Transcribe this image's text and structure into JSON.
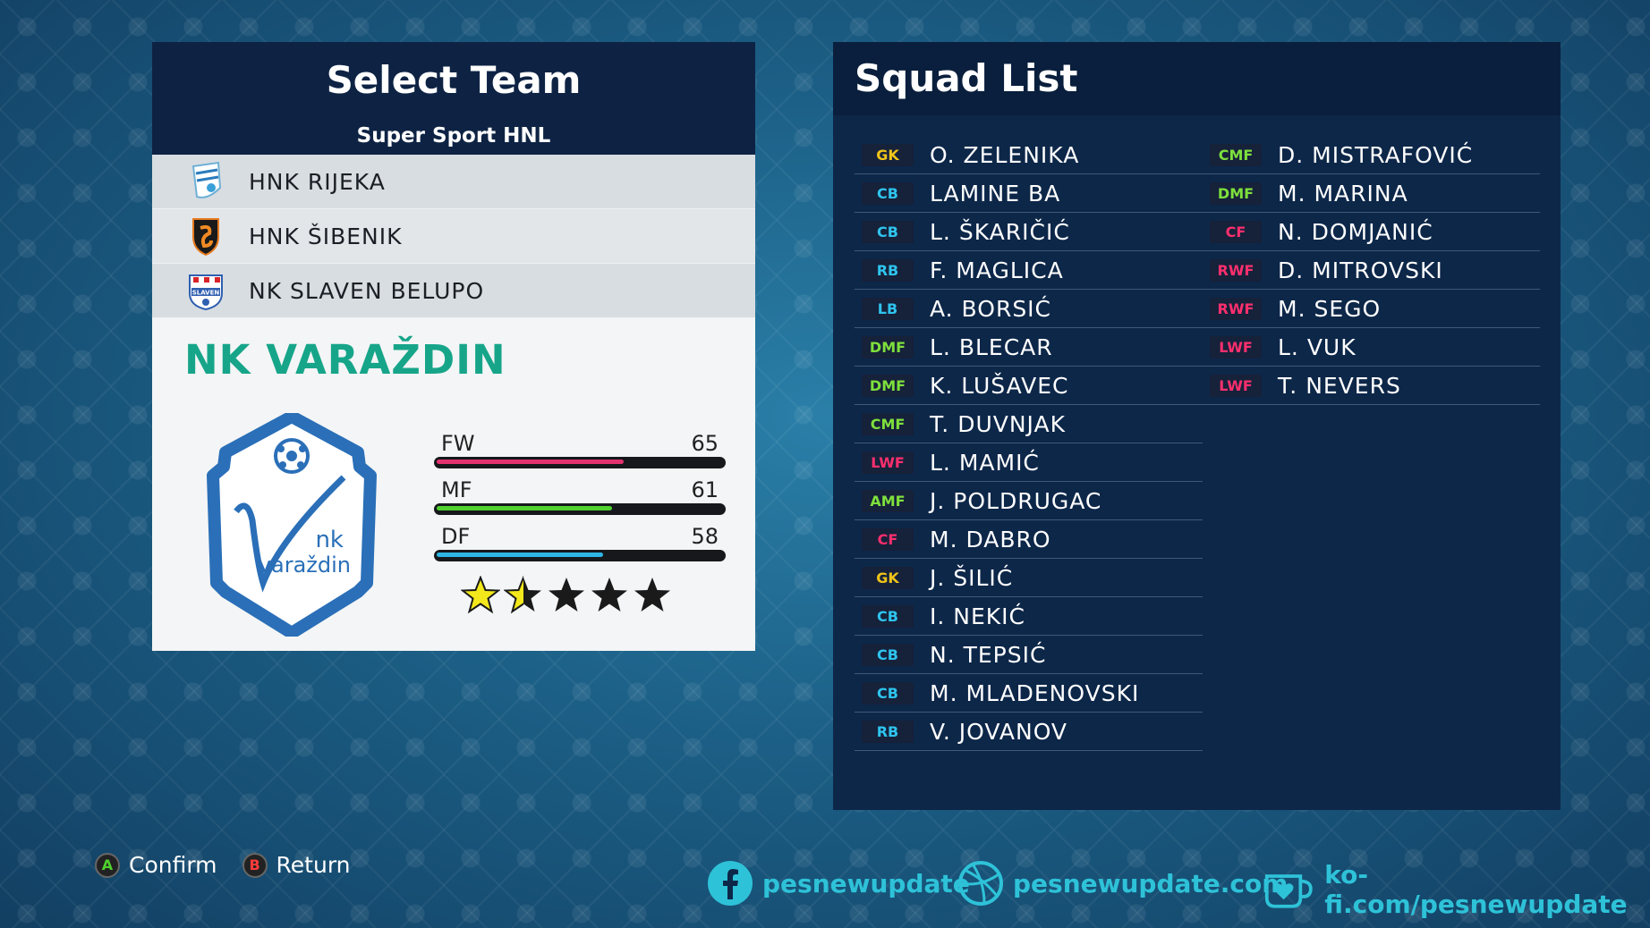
{
  "select_team": {
    "title": "Select Team",
    "league": "Super Sport HNL",
    "teams": [
      {
        "name": "HNK RIJEKA"
      },
      {
        "name": "HNK ŠIBENIK"
      },
      {
        "name": "NK SLAVEN BELUPO"
      }
    ],
    "crest_text": {
      "slaven": "SLAVEN"
    },
    "selected": {
      "name": "NK VARAŽDIN",
      "crest_text": {
        "line1": "nk",
        "line2": "varaždin"
      },
      "stats": [
        {
          "label": "FW",
          "value": "65",
          "color": "#e3336f"
        },
        {
          "label": "MF",
          "value": "61",
          "color": "#4fd12e"
        },
        {
          "label": "DF",
          "value": "58",
          "color": "#2eb6e6"
        }
      ],
      "rating_stars": 1.5,
      "stars_total": 5
    }
  },
  "squad": {
    "title": "Squad List",
    "left": [
      {
        "pos": "GK",
        "name": "O. ZELENIKA",
        "color": "#f0c419"
      },
      {
        "pos": "CB",
        "name": "LAMINE BA",
        "color": "#2ec4ee"
      },
      {
        "pos": "CB",
        "name": "L. ŠKARIČIĆ",
        "color": "#2ec4ee"
      },
      {
        "pos": "RB",
        "name": "F. MAGLICA",
        "color": "#2ec4ee"
      },
      {
        "pos": "LB",
        "name": "A. BORSIĆ",
        "color": "#2ec4ee"
      },
      {
        "pos": "DMF",
        "name": "L. BLECAR",
        "color": "#7ee03c"
      },
      {
        "pos": "DMF",
        "name": "K. LUŠAVEC",
        "color": "#7ee03c"
      },
      {
        "pos": "CMF",
        "name": "T. DUVNJAK",
        "color": "#7ee03c"
      },
      {
        "pos": "LWF",
        "name": "L. MAMIĆ",
        "color": "#ff2f6e"
      },
      {
        "pos": "AMF",
        "name": "J. POLDRUGAC",
        "color": "#7ee03c"
      },
      {
        "pos": "CF",
        "name": "M. DABRO",
        "color": "#ff2f6e"
      },
      {
        "pos": "GK",
        "name": "J. ŠILIĆ",
        "color": "#f0c419"
      },
      {
        "pos": "CB",
        "name": "I. NEKIĆ",
        "color": "#2ec4ee"
      },
      {
        "pos": "CB",
        "name": "N. TEPSIĆ",
        "color": "#2ec4ee"
      },
      {
        "pos": "CB",
        "name": "M. MLADENOVSKI",
        "color": "#2ec4ee"
      },
      {
        "pos": "RB",
        "name": "V. JOVANOV",
        "color": "#2ec4ee"
      }
    ],
    "right": [
      {
        "pos": "CMF",
        "name": "D. MISTRAFOVIĆ",
        "color": "#7ee03c"
      },
      {
        "pos": "DMF",
        "name": "M. MARINA",
        "color": "#7ee03c"
      },
      {
        "pos": "CF",
        "name": "N. DOMJANIĆ",
        "color": "#ff2f6e"
      },
      {
        "pos": "RWF",
        "name": "D. MITROVSKI",
        "color": "#ff2f6e"
      },
      {
        "pos": "RWF",
        "name": "M. SEGO",
        "color": "#ff2f6e"
      },
      {
        "pos": "LWF",
        "name": "L. VUK",
        "color": "#ff2f6e"
      },
      {
        "pos": "LWF",
        "name": "T. NEVERS",
        "color": "#ff2f6e"
      }
    ]
  },
  "controls": [
    {
      "key": "A",
      "label": "Confirm",
      "color": "#4fd12e"
    },
    {
      "key": "B",
      "label": "Return",
      "color": "#ff3b3b"
    }
  ],
  "social": {
    "facebook": "pesnewupdate",
    "website": "pesnewupdate.com",
    "kofi": "ko-fi.com/pesnewupdate"
  }
}
